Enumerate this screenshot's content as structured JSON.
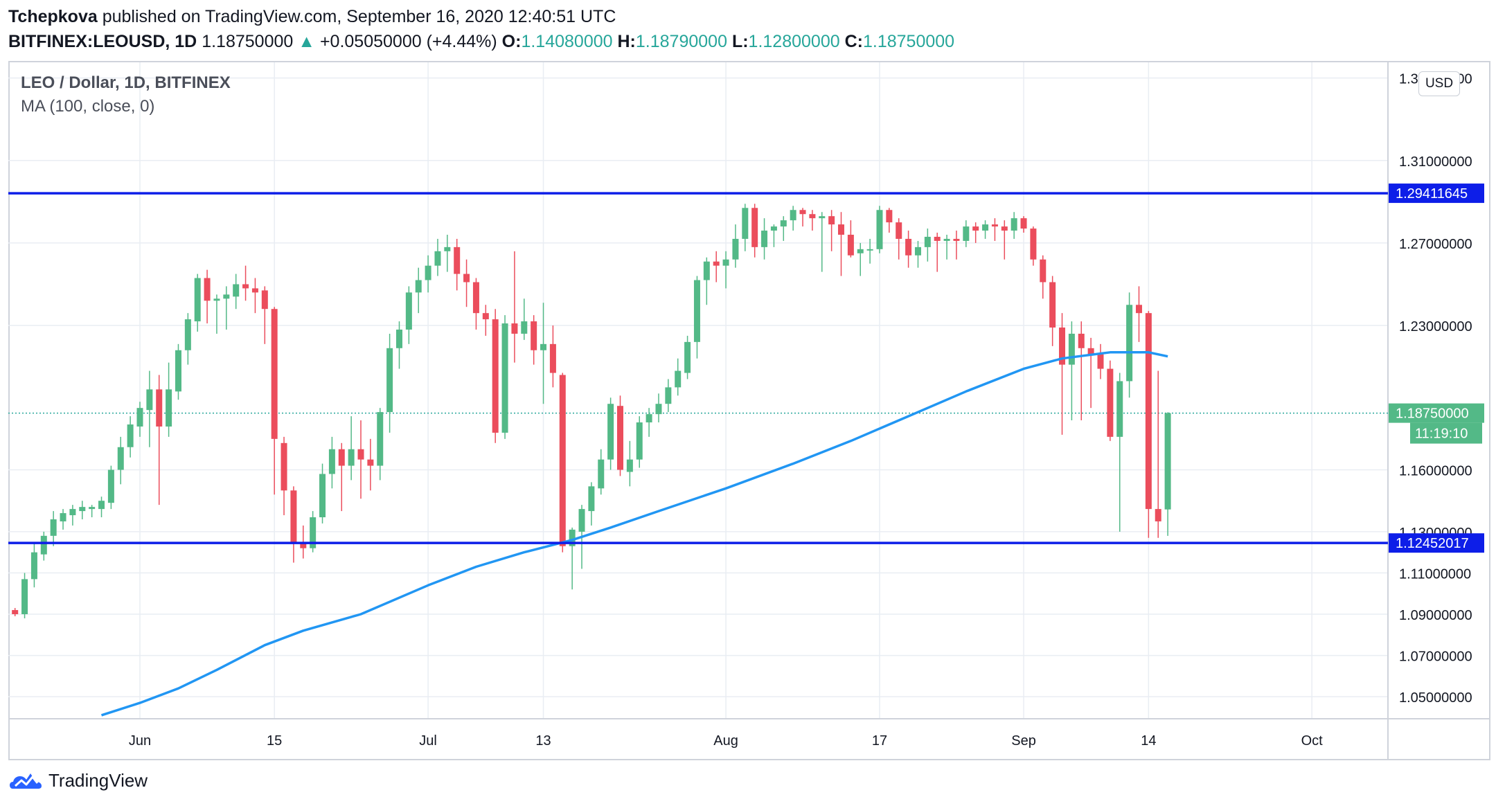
{
  "header": {
    "author": "Tchepkova",
    "published_text": "published on TradingView.com, September 16, 2020 12:40:51 UTC",
    "symbol": "BITFINEX:LEOUSD, 1D",
    "last": "1.18750000",
    "change_arrow": "▲",
    "change": "+0.05050000 (+4.44%)",
    "o_label": "O:",
    "o_value": "1.14080000",
    "h_label": "H:",
    "h_value": "1.18790000",
    "l_label": "L:",
    "l_value": "1.12800000",
    "c_label": "C:",
    "c_value": "1.18750000"
  },
  "legend": {
    "title": "LEO / Dollar, 1D, BITFINEX",
    "indicator": "MA (100, close, 0)"
  },
  "currency_button": "USD",
  "footer": {
    "brand": "TradingView"
  },
  "colors": {
    "up": "#26a69a",
    "up_candle": "#53b987",
    "down_candle": "#eb4d5c",
    "ma_line": "#2196f3",
    "level_line": "#0d1ee8",
    "level_label_bg": "#0d1ee8",
    "price_label_bg": "#53b987",
    "grid": "#e9edf3"
  },
  "chart_data": {
    "type": "candlestick",
    "y_axis": {
      "range": [
        1.0393,
        1.3576
      ],
      "ticks": [
        "1.35000000",
        "1.31000000",
        "1.27000000",
        "1.23000000",
        "1.16000000",
        "1.13000000",
        "1.11000000",
        "1.09000000",
        "1.07000000",
        "1.05000000"
      ]
    },
    "x_axis": {
      "labels": [
        "Jun",
        "15",
        "Jul",
        "13",
        "Aug",
        "17",
        "Sep",
        "14",
        "Oct"
      ],
      "label_dates": [
        "2020-06-01",
        "2020-06-15",
        "2020-07-01",
        "2020-07-13",
        "2020-08-01",
        "2020-08-17",
        "2020-09-01",
        "2020-09-14",
        "2020-10-01"
      ]
    },
    "grid": true,
    "horizontal_levels": [
      {
        "value": 1.29411645,
        "label": "1.29411645"
      },
      {
        "value": 1.12452017,
        "label": "1.12452017"
      }
    ],
    "last_price": {
      "value": 1.1875,
      "label": "1.18750000",
      "countdown": "11:19:10"
    },
    "ma_series": {
      "name": "MA (100, close, 0)",
      "points": [
        [
          "2020-05-28",
          1.041
        ],
        [
          "2020-06-01",
          1.047
        ],
        [
          "2020-06-05",
          1.054
        ],
        [
          "2020-06-09",
          1.063
        ],
        [
          "2020-06-14",
          1.075
        ],
        [
          "2020-06-18",
          1.082
        ],
        [
          "2020-06-24",
          1.09
        ],
        [
          "2020-07-01",
          1.104
        ],
        [
          "2020-07-06",
          1.113
        ],
        [
          "2020-07-11",
          1.12
        ],
        [
          "2020-07-16",
          1.126
        ],
        [
          "2020-07-20",
          1.132
        ],
        [
          "2020-07-25",
          1.14
        ],
        [
          "2020-08-01",
          1.151
        ],
        [
          "2020-08-08",
          1.163
        ],
        [
          "2020-08-14",
          1.174
        ],
        [
          "2020-08-20",
          1.186
        ],
        [
          "2020-08-26",
          1.198
        ],
        [
          "2020-09-01",
          1.209
        ],
        [
          "2020-09-05",
          1.214
        ],
        [
          "2020-09-10",
          1.217
        ],
        [
          "2020-09-14",
          1.217
        ],
        [
          "2020-09-16",
          1.215
        ]
      ]
    },
    "candles": [
      [
        "2020-05-19",
        1.092,
        1.093,
        1.089,
        1.09
      ],
      [
        "2020-05-20",
        1.09,
        1.11,
        1.088,
        1.107
      ],
      [
        "2020-05-21",
        1.107,
        1.125,
        1.103,
        1.12
      ],
      [
        "2020-05-22",
        1.119,
        1.13,
        1.116,
        1.128
      ],
      [
        "2020-05-23",
        1.128,
        1.14,
        1.123,
        1.136
      ],
      [
        "2020-05-24",
        1.135,
        1.141,
        1.131,
        1.139
      ],
      [
        "2020-05-25",
        1.138,
        1.143,
        1.133,
        1.141
      ],
      [
        "2020-05-26",
        1.14,
        1.145,
        1.136,
        1.142
      ],
      [
        "2020-05-27",
        1.141,
        1.143,
        1.137,
        1.142
      ],
      [
        "2020-05-28",
        1.141,
        1.147,
        1.137,
        1.145
      ],
      [
        "2020-05-29",
        1.144,
        1.162,
        1.141,
        1.16
      ],
      [
        "2020-05-30",
        1.16,
        1.176,
        1.153,
        1.171
      ],
      [
        "2020-05-31",
        1.171,
        1.186,
        1.166,
        1.182
      ],
      [
        "2020-06-01",
        1.181,
        1.193,
        1.176,
        1.19
      ],
      [
        "2020-06-02",
        1.189,
        1.208,
        1.171,
        1.199
      ],
      [
        "2020-06-03",
        1.199,
        1.206,
        1.143,
        1.181
      ],
      [
        "2020-06-04",
        1.181,
        1.212,
        1.176,
        1.199
      ],
      [
        "2020-06-05",
        1.198,
        1.221,
        1.194,
        1.218
      ],
      [
        "2020-06-06",
        1.218,
        1.236,
        1.211,
        1.233
      ],
      [
        "2020-06-07",
        1.232,
        1.255,
        1.227,
        1.253
      ],
      [
        "2020-06-08",
        1.253,
        1.257,
        1.231,
        1.242
      ],
      [
        "2020-06-09",
        1.242,
        1.245,
        1.226,
        1.243
      ],
      [
        "2020-06-10",
        1.243,
        1.249,
        1.228,
        1.245
      ],
      [
        "2020-06-11",
        1.244,
        1.255,
        1.238,
        1.25
      ],
      [
        "2020-06-12",
        1.25,
        1.259,
        1.242,
        1.248
      ],
      [
        "2020-06-13",
        1.248,
        1.253,
        1.236,
        1.246
      ],
      [
        "2020-06-14",
        1.247,
        1.249,
        1.221,
        1.238
      ],
      [
        "2020-06-15",
        1.238,
        1.239,
        1.148,
        1.175
      ],
      [
        "2020-06-16",
        1.173,
        1.176,
        1.138,
        1.15
      ],
      [
        "2020-06-17",
        1.15,
        1.152,
        1.115,
        1.125
      ],
      [
        "2020-06-18",
        1.125,
        1.133,
        1.117,
        1.122
      ],
      [
        "2020-06-19",
        1.122,
        1.14,
        1.12,
        1.137
      ],
      [
        "2020-06-20",
        1.137,
        1.163,
        1.134,
        1.158
      ],
      [
        "2020-06-21",
        1.158,
        1.176,
        1.151,
        1.17
      ],
      [
        "2020-06-22",
        1.17,
        1.173,
        1.14,
        1.162
      ],
      [
        "2020-06-23",
        1.162,
        1.186,
        1.155,
        1.17
      ],
      [
        "2020-06-24",
        1.17,
        1.184,
        1.146,
        1.165
      ],
      [
        "2020-06-25",
        1.165,
        1.175,
        1.15,
        1.162
      ],
      [
        "2020-06-26",
        1.162,
        1.19,
        1.155,
        1.188
      ],
      [
        "2020-06-27",
        1.188,
        1.226,
        1.178,
        1.219
      ],
      [
        "2020-06-28",
        1.219,
        1.232,
        1.209,
        1.228
      ],
      [
        "2020-06-29",
        1.228,
        1.249,
        1.221,
        1.246
      ],
      [
        "2020-06-30",
        1.246,
        1.258,
        1.236,
        1.252
      ],
      [
        "2020-07-01",
        1.252,
        1.264,
        1.246,
        1.259
      ],
      [
        "2020-07-02",
        1.259,
        1.272,
        1.254,
        1.266
      ],
      [
        "2020-07-03",
        1.266,
        1.274,
        1.256,
        1.268
      ],
      [
        "2020-07-04",
        1.268,
        1.272,
        1.247,
        1.255
      ],
      [
        "2020-07-05",
        1.255,
        1.262,
        1.239,
        1.251
      ],
      [
        "2020-07-06",
        1.251,
        1.253,
        1.228,
        1.236
      ],
      [
        "2020-07-07",
        1.236,
        1.24,
        1.225,
        1.233
      ],
      [
        "2020-07-08",
        1.233,
        1.238,
        1.173,
        1.178
      ],
      [
        "2020-07-09",
        1.178,
        1.235,
        1.175,
        1.231
      ],
      [
        "2020-07-10",
        1.231,
        1.266,
        1.212,
        1.226
      ],
      [
        "2020-07-11",
        1.226,
        1.243,
        1.223,
        1.232
      ],
      [
        "2020-07-12",
        1.232,
        1.235,
        1.211,
        1.218
      ],
      [
        "2020-07-13",
        1.218,
        1.241,
        1.192,
        1.221
      ],
      [
        "2020-07-14",
        1.221,
        1.23,
        1.2,
        1.207
      ],
      [
        "2020-07-15",
        1.206,
        1.207,
        1.12,
        1.123
      ],
      [
        "2020-07-16",
        1.123,
        1.132,
        1.102,
        1.131
      ],
      [
        "2020-07-17",
        1.13,
        1.143,
        1.112,
        1.141
      ],
      [
        "2020-07-18",
        1.14,
        1.154,
        1.133,
        1.152
      ],
      [
        "2020-07-19",
        1.151,
        1.17,
        1.148,
        1.165
      ],
      [
        "2020-07-20",
        1.165,
        1.195,
        1.16,
        1.192
      ],
      [
        "2020-07-21",
        1.191,
        1.196,
        1.157,
        1.16
      ],
      [
        "2020-07-22",
        1.159,
        1.174,
        1.152,
        1.165
      ],
      [
        "2020-07-23",
        1.165,
        1.186,
        1.161,
        1.183
      ],
      [
        "2020-07-24",
        1.183,
        1.19,
        1.176,
        1.187
      ],
      [
        "2020-07-25",
        1.187,
        1.197,
        1.183,
        1.192
      ],
      [
        "2020-07-26",
        1.192,
        1.204,
        1.188,
        1.2
      ],
      [
        "2020-07-27",
        1.2,
        1.214,
        1.196,
        1.208
      ],
      [
        "2020-07-28",
        1.207,
        1.225,
        1.204,
        1.222
      ],
      [
        "2020-07-29",
        1.222,
        1.254,
        1.214,
        1.252
      ],
      [
        "2020-07-30",
        1.252,
        1.263,
        1.24,
        1.261
      ],
      [
        "2020-07-31",
        1.261,
        1.266,
        1.251,
        1.259
      ],
      [
        "2020-08-01",
        1.259,
        1.266,
        1.248,
        1.262
      ],
      [
        "2020-08-02",
        1.262,
        1.279,
        1.258,
        1.272
      ],
      [
        "2020-08-03",
        1.272,
        1.289,
        1.266,
        1.287
      ],
      [
        "2020-08-04",
        1.287,
        1.289,
        1.263,
        1.268
      ],
      [
        "2020-08-05",
        1.268,
        1.282,
        1.262,
        1.276
      ],
      [
        "2020-08-06",
        1.276,
        1.279,
        1.268,
        1.278
      ],
      [
        "2020-08-07",
        1.278,
        1.283,
        1.271,
        1.281
      ],
      [
        "2020-08-08",
        1.281,
        1.288,
        1.276,
        1.286
      ],
      [
        "2020-08-09",
        1.286,
        1.287,
        1.278,
        1.284
      ],
      [
        "2020-08-10",
        1.284,
        1.286,
        1.276,
        1.282
      ],
      [
        "2020-08-11",
        1.282,
        1.285,
        1.256,
        1.283
      ],
      [
        "2020-08-12",
        1.283,
        1.286,
        1.266,
        1.279
      ],
      [
        "2020-08-13",
        1.279,
        1.285,
        1.254,
        1.274
      ],
      [
        "2020-08-14",
        1.274,
        1.281,
        1.263,
        1.264
      ],
      [
        "2020-08-15",
        1.265,
        1.27,
        1.254,
        1.267
      ],
      [
        "2020-08-16",
        1.267,
        1.272,
        1.26,
        1.267
      ],
      [
        "2020-08-17",
        1.267,
        1.288,
        1.265,
        1.286
      ],
      [
        "2020-08-18",
        1.286,
        1.287,
        1.275,
        1.28
      ],
      [
        "2020-08-19",
        1.28,
        1.282,
        1.262,
        1.272
      ],
      [
        "2020-08-20",
        1.272,
        1.276,
        1.258,
        1.264
      ],
      [
        "2020-08-21",
        1.264,
        1.271,
        1.258,
        1.268
      ],
      [
        "2020-08-22",
        1.268,
        1.277,
        1.261,
        1.273
      ],
      [
        "2020-08-23",
        1.273,
        1.275,
        1.256,
        1.271
      ],
      [
        "2020-08-24",
        1.271,
        1.274,
        1.262,
        1.272
      ],
      [
        "2020-08-25",
        1.272,
        1.276,
        1.262,
        1.271
      ],
      [
        "2020-08-26",
        1.271,
        1.281,
        1.268,
        1.278
      ],
      [
        "2020-08-27",
        1.278,
        1.28,
        1.27,
        1.276
      ],
      [
        "2020-08-28",
        1.276,
        1.281,
        1.272,
        1.279
      ],
      [
        "2020-08-29",
        1.279,
        1.282,
        1.271,
        1.278
      ],
      [
        "2020-08-30",
        1.278,
        1.281,
        1.262,
        1.276
      ],
      [
        "2020-08-31",
        1.276,
        1.285,
        1.272,
        1.282
      ],
      [
        "2020-09-01",
        1.282,
        1.283,
        1.275,
        1.277
      ],
      [
        "2020-09-02",
        1.277,
        1.278,
        1.259,
        1.262
      ],
      [
        "2020-09-03",
        1.262,
        1.264,
        1.243,
        1.251
      ],
      [
        "2020-09-04",
        1.251,
        1.254,
        1.22,
        1.229
      ],
      [
        "2020-09-05",
        1.229,
        1.236,
        1.177,
        1.211
      ],
      [
        "2020-09-06",
        1.211,
        1.232,
        1.184,
        1.226
      ],
      [
        "2020-09-07",
        1.226,
        1.232,
        1.184,
        1.219
      ],
      [
        "2020-09-08",
        1.219,
        1.224,
        1.19,
        1.216
      ],
      [
        "2020-09-09",
        1.216,
        1.221,
        1.204,
        1.209
      ],
      [
        "2020-09-10",
        1.209,
        1.213,
        1.174,
        1.176
      ],
      [
        "2020-09-11",
        1.176,
        1.207,
        1.13,
        1.203
      ],
      [
        "2020-09-12",
        1.203,
        1.246,
        1.195,
        1.24
      ],
      [
        "2020-09-13",
        1.24,
        1.249,
        1.222,
        1.236
      ],
      [
        "2020-09-14",
        1.236,
        1.237,
        1.127,
        1.141
      ],
      [
        "2020-09-15",
        1.141,
        1.208,
        1.127,
        1.135
      ],
      [
        "2020-09-16",
        1.1408,
        1.1879,
        1.128,
        1.1875
      ]
    ]
  }
}
